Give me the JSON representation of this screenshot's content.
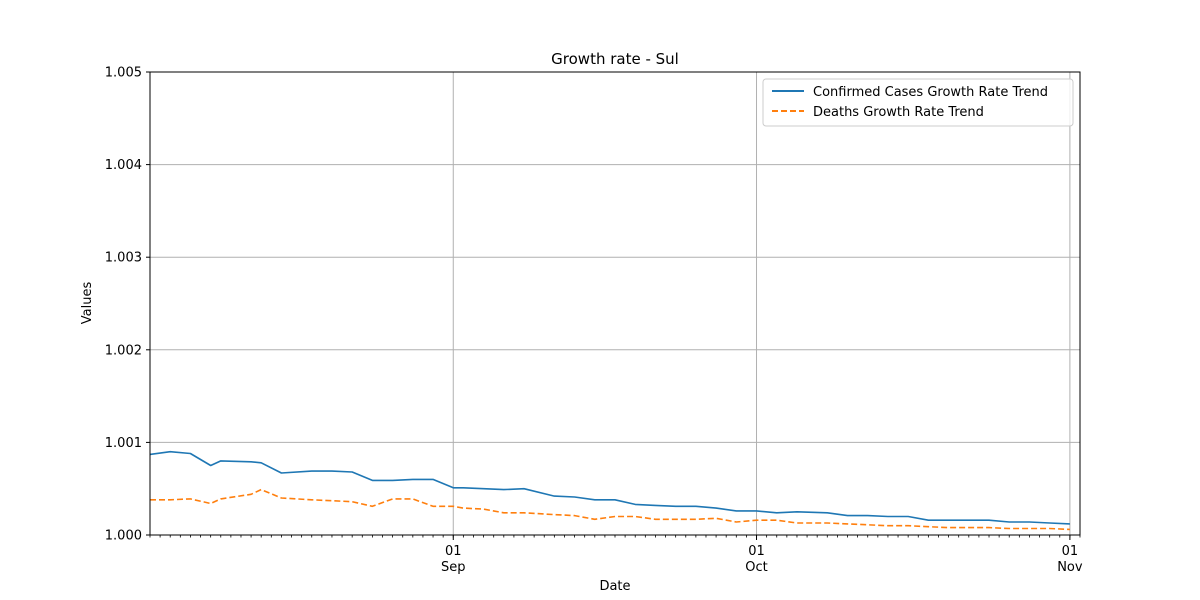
{
  "chart_data": {
    "type": "line",
    "title": "Growth rate - Sul",
    "xlabel": "Date",
    "ylabel": "Values",
    "ylim": [
      1.0,
      1.005
    ],
    "xlim": [
      "2020-08-02",
      "2020-11-02"
    ],
    "y_ticks": [
      "1.000",
      "1.001",
      "1.002",
      "1.003",
      "1.004",
      "1.005"
    ],
    "x_ticks": [
      {
        "date": "2020-09-01",
        "day": "01",
        "month": "Sep"
      },
      {
        "date": "2020-10-01",
        "day": "01",
        "month": "Oct"
      },
      {
        "date": "2020-11-01",
        "day": "01",
        "month": "Nov"
      }
    ],
    "grid": true,
    "legend_position": "top-right",
    "x": [
      "2020-08-02",
      "2020-08-04",
      "2020-08-06",
      "2020-08-08",
      "2020-08-09",
      "2020-08-12",
      "2020-08-13",
      "2020-08-15",
      "2020-08-18",
      "2020-08-20",
      "2020-08-22",
      "2020-08-24",
      "2020-08-26",
      "2020-08-28",
      "2020-08-30",
      "2020-09-01",
      "2020-09-02",
      "2020-09-04",
      "2020-09-06",
      "2020-09-08",
      "2020-09-11",
      "2020-09-13",
      "2020-09-15",
      "2020-09-17",
      "2020-09-19",
      "2020-09-21",
      "2020-09-23",
      "2020-09-25",
      "2020-09-27",
      "2020-09-29",
      "2020-10-01",
      "2020-10-03",
      "2020-10-05",
      "2020-10-08",
      "2020-10-10",
      "2020-10-12",
      "2020-10-14",
      "2020-10-16",
      "2020-10-18",
      "2020-10-20",
      "2020-10-22",
      "2020-10-24",
      "2020-10-26",
      "2020-10-28",
      "2020-10-30",
      "2020-11-01"
    ],
    "series": [
      {
        "name": "Confirmed Cases Growth Rate Trend",
        "color": "#1f77b4",
        "style": "solid",
        "values": [
          1.00087,
          1.0009,
          1.00088,
          1.00075,
          1.0008,
          1.00079,
          1.00078,
          1.00067,
          1.00069,
          1.00069,
          1.00068,
          1.00059,
          1.00059,
          1.0006,
          1.0006,
          1.00051,
          1.00051,
          1.0005,
          1.00049,
          1.0005,
          1.00042,
          1.00041,
          1.00038,
          1.00038,
          1.00033,
          1.00032,
          1.00031,
          1.00031,
          1.00029,
          1.00026,
          1.00026,
          1.00024,
          1.00025,
          1.00024,
          1.00021,
          1.00021,
          1.0002,
          1.0002,
          1.00016,
          1.00016,
          1.00016,
          1.00016,
          1.00014,
          1.00014,
          1.00013,
          1.00012
        ]
      },
      {
        "name": "Deaths Growth Rate Trend",
        "color": "#ff7f0e",
        "style": "dashed",
        "values": [
          1.00038,
          1.00038,
          1.00039,
          1.00034,
          1.00039,
          1.00044,
          1.00049,
          1.0004,
          1.00038,
          1.00037,
          1.00036,
          1.00031,
          1.00039,
          1.00039,
          1.00031,
          1.00031,
          1.00029,
          1.00028,
          1.00024,
          1.00024,
          1.00022,
          1.00021,
          1.00017,
          1.0002,
          1.0002,
          1.00017,
          1.00017,
          1.00017,
          1.00018,
          1.00014,
          1.00016,
          1.00016,
          1.00013,
          1.00013,
          1.00012,
          1.00011,
          1.0001,
          1.0001,
          1.00009,
          1.00008,
          1.00008,
          1.00008,
          1.00007,
          1.00007,
          1.00007,
          1.00006
        ]
      }
    ]
  }
}
